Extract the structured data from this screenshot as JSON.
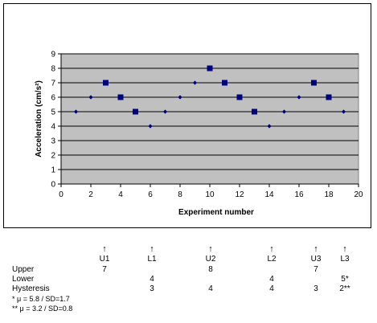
{
  "chart_data": {
    "type": "scatter",
    "title": "",
    "xlabel": "Experiment number",
    "ylabel": "Acceleration (cm/s²)",
    "xlim": [
      0,
      20
    ],
    "ylim": [
      0,
      9
    ],
    "x_ticks": [
      "0",
      "2",
      "4",
      "6",
      "8",
      "10",
      "12",
      "14",
      "16",
      "18",
      "20"
    ],
    "y_ticks": [
      "0",
      "1",
      "2",
      "3",
      "4",
      "5",
      "6",
      "7",
      "8",
      "9"
    ],
    "grid": "horizontal",
    "plot_background": "#c0c0c0",
    "series": [
      {
        "marker": "diamond-small",
        "color": "#000080",
        "points": [
          {
            "x": 1,
            "y": 5
          },
          {
            "x": 2,
            "y": 6
          },
          {
            "x": 6,
            "y": 4
          },
          {
            "x": 7,
            "y": 5
          },
          {
            "x": 8,
            "y": 6
          },
          {
            "x": 9,
            "y": 7
          },
          {
            "x": 14,
            "y": 4
          },
          {
            "x": 15,
            "y": 5
          },
          {
            "x": 16,
            "y": 6
          },
          {
            "x": 19,
            "y": 5
          }
        ]
      },
      {
        "marker": "square",
        "color": "#000080",
        "points": [
          {
            "x": 3,
            "y": 7
          },
          {
            "x": 4,
            "y": 6
          },
          {
            "x": 5,
            "y": 5
          },
          {
            "x": 10,
            "y": 8
          },
          {
            "x": 11,
            "y": 7
          },
          {
            "x": 12,
            "y": 6
          },
          {
            "x": 13,
            "y": 5
          },
          {
            "x": 17,
            "y": 7
          },
          {
            "x": 18,
            "y": 6
          }
        ]
      }
    ]
  },
  "annotations": {
    "arrow_glyph": "↑",
    "columns": [
      "U1",
      "L1",
      "U2",
      "L2",
      "U3",
      "L3"
    ],
    "rows": [
      {
        "label": "Upper",
        "values": [
          "7",
          "",
          "8",
          "",
          "7",
          ""
        ]
      },
      {
        "label": "Lower",
        "values": [
          "",
          "4",
          "",
          "4",
          "",
          "5*"
        ]
      },
      {
        "label": "Hysteresis",
        "values": [
          "",
          "3",
          "4",
          "4",
          "3",
          "2**"
        ]
      }
    ],
    "footnotes": [
      "*   μ = 5.8 / SD=1.7",
      "** μ = 3.2 / SD=0.8"
    ]
  }
}
